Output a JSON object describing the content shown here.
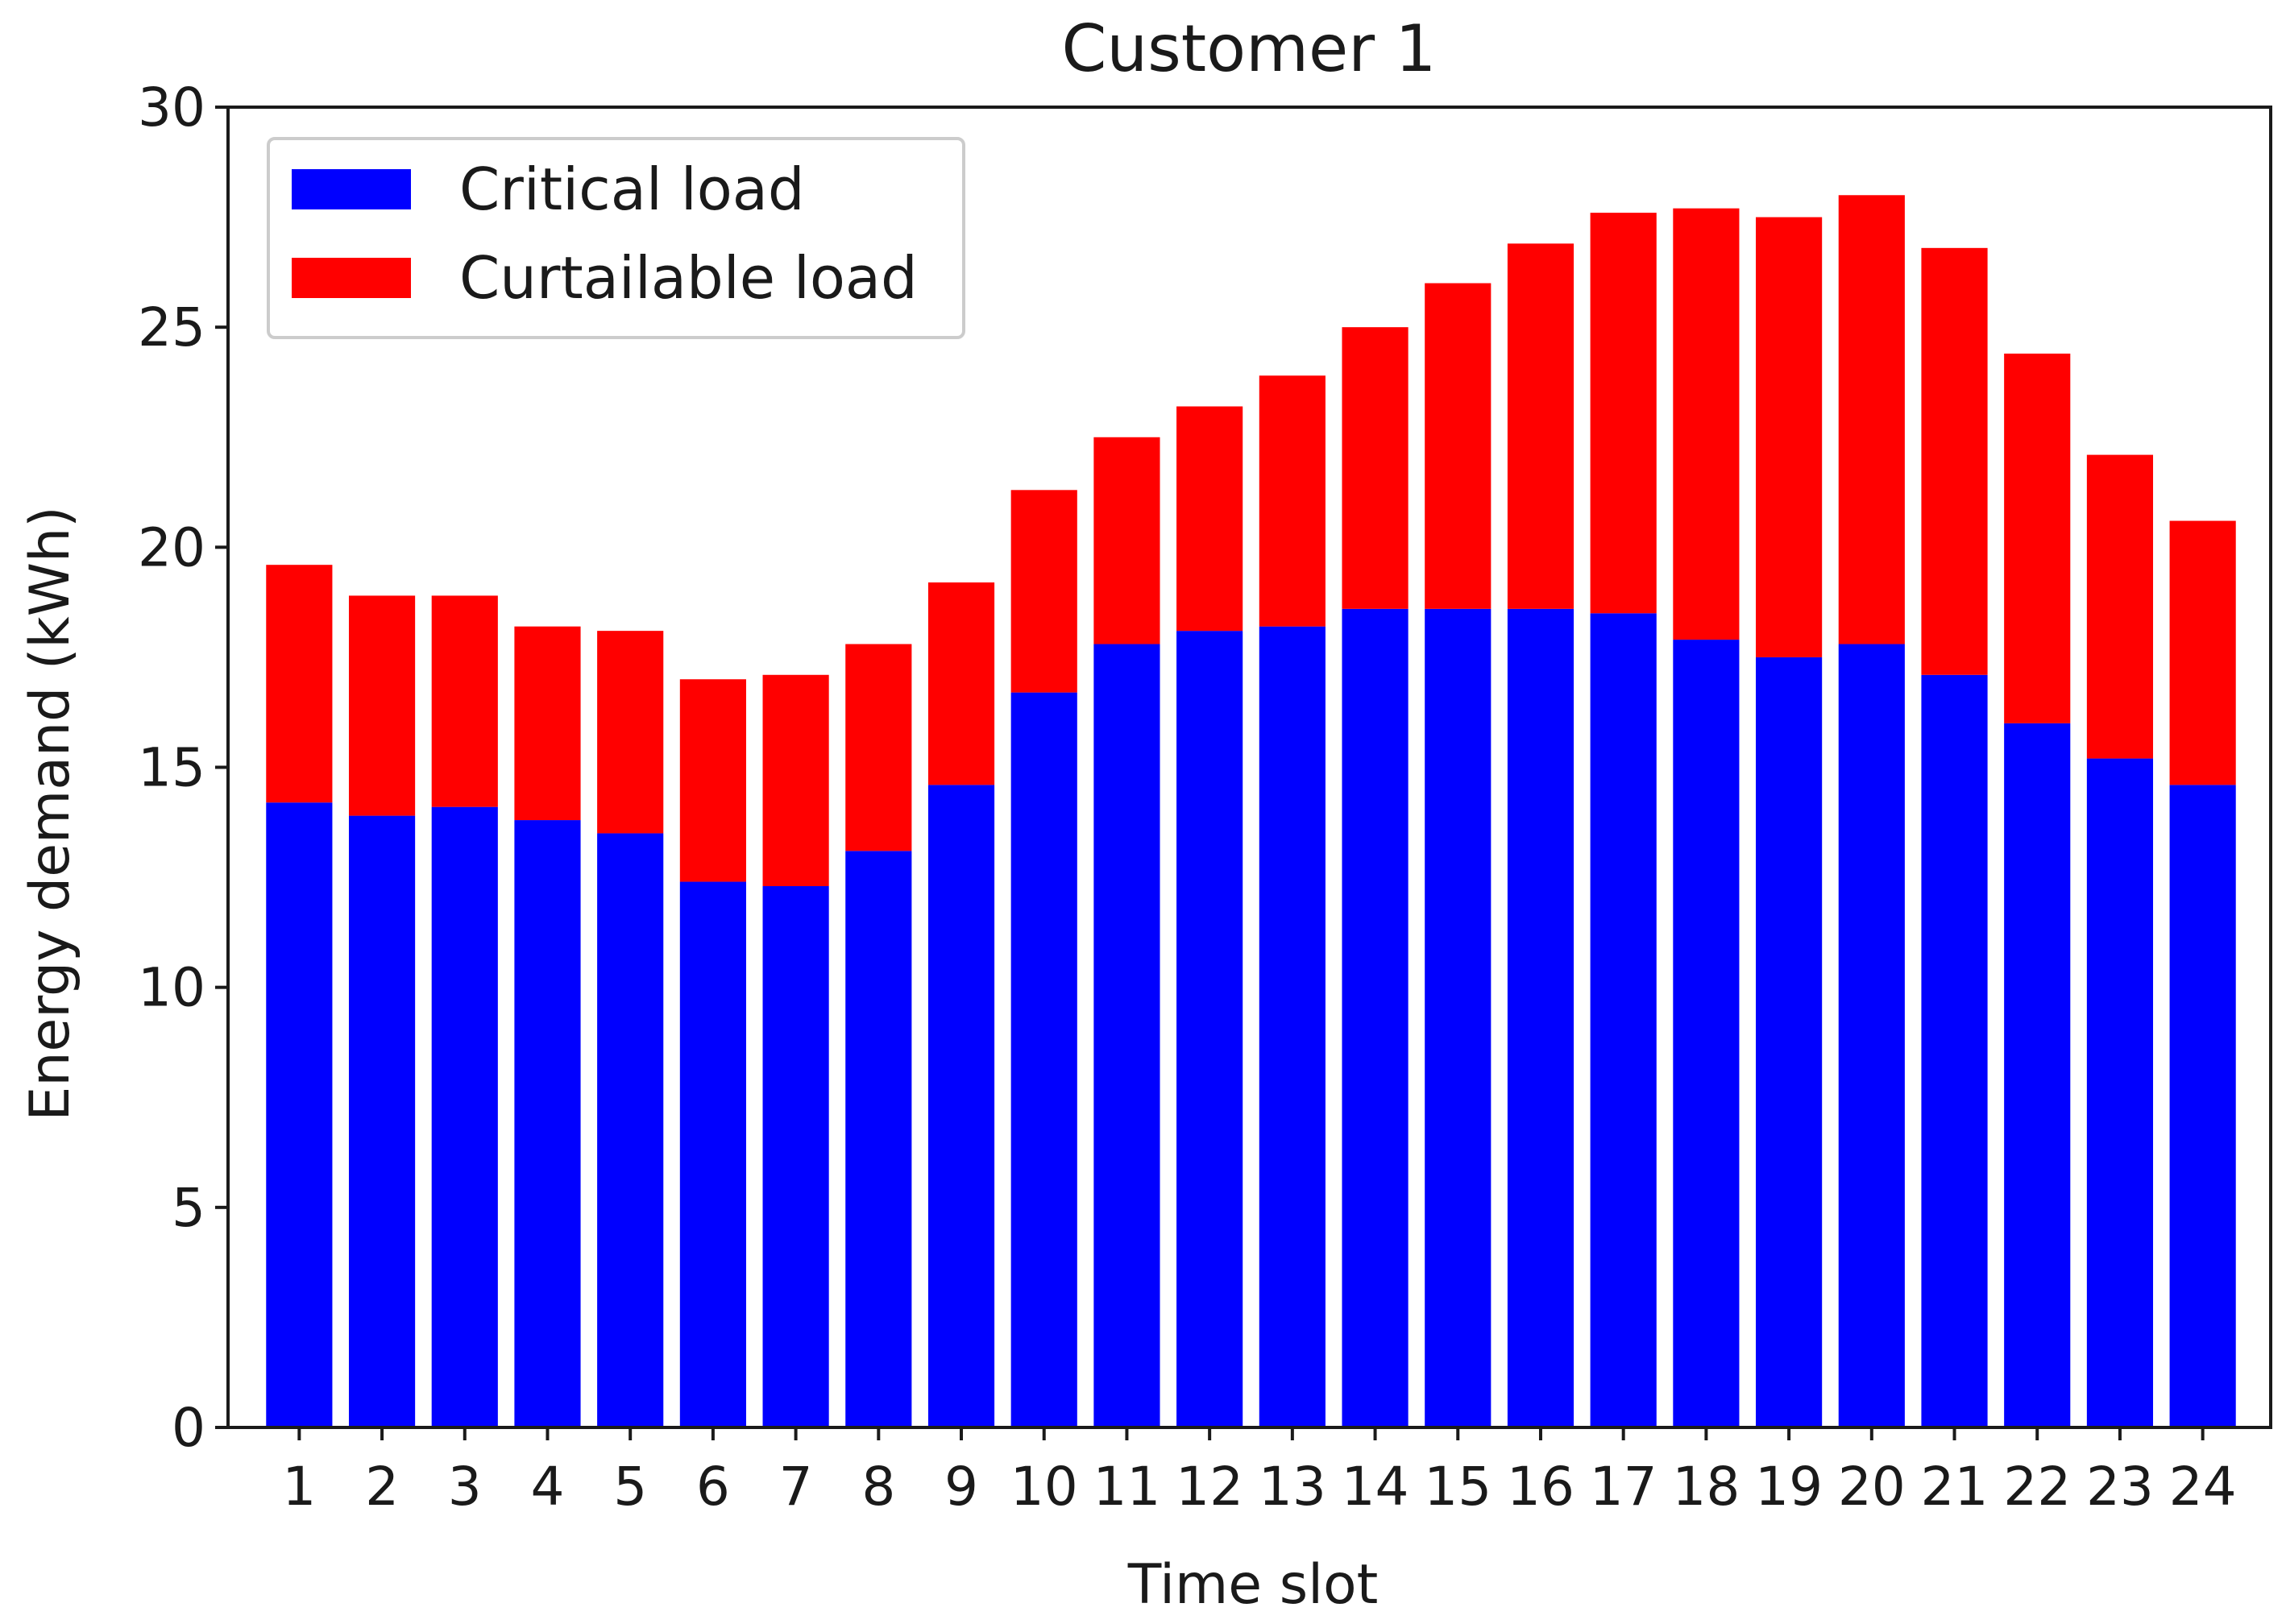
{
  "chart_data": {
    "type": "bar",
    "stacked": true,
    "title": "Customer 1",
    "xlabel": "Time slot",
    "ylabel": "Energy demand (kWh)",
    "ylim": [
      0,
      30
    ],
    "yticks": [
      0,
      5,
      10,
      15,
      20,
      25,
      30
    ],
    "grid": false,
    "legend_position": "top-left",
    "categories": [
      "1",
      "2",
      "3",
      "4",
      "5",
      "6",
      "7",
      "8",
      "9",
      "10",
      "11",
      "12",
      "13",
      "14",
      "15",
      "16",
      "17",
      "18",
      "19",
      "20",
      "21",
      "22",
      "23",
      "24"
    ],
    "series": [
      {
        "name": "Critical load",
        "color": "#0000ff",
        "values": [
          14.2,
          13.9,
          14.1,
          13.8,
          13.5,
          12.4,
          12.3,
          13.1,
          14.6,
          16.7,
          17.8,
          18.1,
          18.2,
          18.6,
          18.6,
          18.6,
          18.5,
          17.9,
          17.5,
          17.8,
          17.1,
          16.0,
          15.2,
          14.6
        ]
      },
      {
        "name": "Curtailable load",
        "color": "#ff0000",
        "values": [
          5.4,
          5.0,
          4.8,
          4.4,
          4.6,
          4.6,
          4.8,
          4.7,
          4.6,
          4.6,
          4.7,
          5.1,
          5.7,
          6.4,
          7.4,
          8.3,
          9.1,
          9.8,
          10.0,
          10.2,
          9.7,
          8.4,
          6.9,
          6.0
        ]
      }
    ]
  }
}
